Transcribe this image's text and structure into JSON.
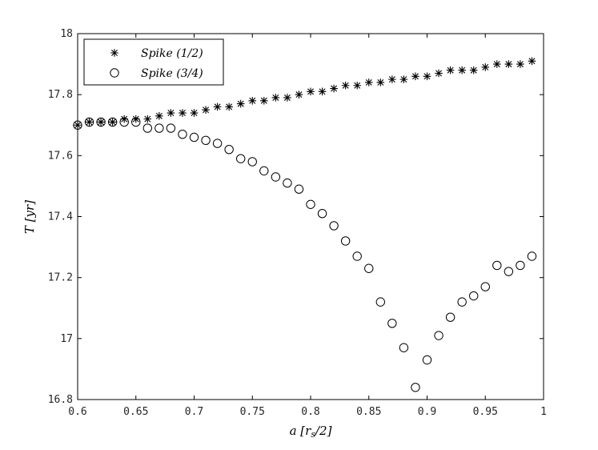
{
  "chart_data": {
    "type": "scatter",
    "xlabel": "a [r_s/2]",
    "ylabel": "T [yr]",
    "xlim": [
      0.6,
      1.0
    ],
    "ylim": [
      16.8,
      18.0
    ],
    "x_ticks": [
      0.6,
      0.65,
      0.7,
      0.75,
      0.8,
      0.85,
      0.9,
      0.95,
      1
    ],
    "x_tick_labels": [
      "0.6",
      "0.65",
      "0.7",
      "0.75",
      "0.8",
      "0.85",
      "0.9",
      "0.95",
      "1"
    ],
    "y_ticks": [
      16.8,
      17.0,
      17.2,
      17.4,
      17.6,
      17.8,
      18.0
    ],
    "y_tick_labels": [
      "16.8",
      "17",
      "17.2",
      "17.4",
      "17.6",
      "17.8",
      "18"
    ],
    "grid": false,
    "legend_position": "top-left",
    "series": [
      {
        "name": "Spike (1/2)",
        "marker": "star",
        "x": [
          0.6,
          0.61,
          0.62,
          0.63,
          0.64,
          0.65,
          0.66,
          0.67,
          0.68,
          0.69,
          0.7,
          0.71,
          0.72,
          0.73,
          0.74,
          0.75,
          0.76,
          0.77,
          0.78,
          0.79,
          0.8,
          0.81,
          0.82,
          0.83,
          0.84,
          0.85,
          0.86,
          0.87,
          0.88,
          0.89,
          0.9,
          0.91,
          0.92,
          0.93,
          0.94,
          0.95,
          0.96,
          0.97,
          0.98,
          0.99
        ],
        "y": [
          17.7,
          17.71,
          17.71,
          17.71,
          17.72,
          17.72,
          17.72,
          17.73,
          17.74,
          17.74,
          17.74,
          17.75,
          17.76,
          17.76,
          17.77,
          17.78,
          17.78,
          17.79,
          17.79,
          17.8,
          17.81,
          17.81,
          17.82,
          17.83,
          17.83,
          17.84,
          17.84,
          17.85,
          17.85,
          17.86,
          17.86,
          17.87,
          17.88,
          17.88,
          17.88,
          17.89,
          17.9,
          17.9,
          17.9,
          17.91
        ]
      },
      {
        "name": "Spike (3/4)",
        "marker": "circle",
        "x": [
          0.6,
          0.61,
          0.62,
          0.63,
          0.64,
          0.65,
          0.66,
          0.67,
          0.68,
          0.69,
          0.7,
          0.71,
          0.72,
          0.73,
          0.74,
          0.75,
          0.76,
          0.77,
          0.78,
          0.79,
          0.8,
          0.81,
          0.82,
          0.83,
          0.84,
          0.85,
          0.86,
          0.87,
          0.88,
          0.89,
          0.9,
          0.91,
          0.92,
          0.93,
          0.94,
          0.95,
          0.96,
          0.97,
          0.98,
          0.99
        ],
        "y": [
          17.7,
          17.71,
          17.71,
          17.71,
          17.71,
          17.71,
          17.69,
          17.69,
          17.69,
          17.67,
          17.66,
          17.65,
          17.64,
          17.62,
          17.59,
          17.58,
          17.55,
          17.53,
          17.51,
          17.49,
          17.44,
          17.41,
          17.37,
          17.32,
          17.27,
          17.23,
          17.12,
          17.05,
          16.97,
          16.84,
          16.93,
          17.01,
          17.07,
          17.12,
          17.14,
          17.17,
          17.24,
          17.22,
          17.24,
          17.27
        ]
      }
    ]
  }
}
